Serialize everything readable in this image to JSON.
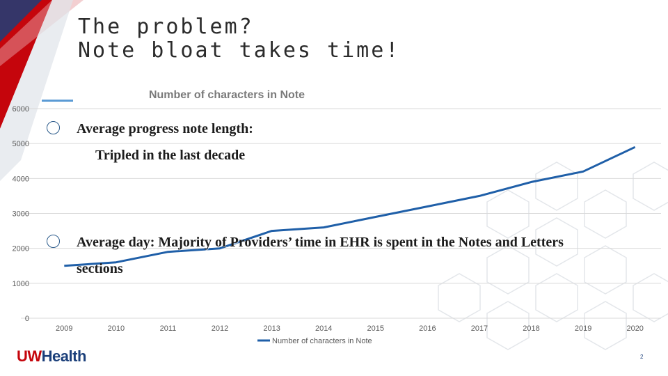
{
  "slide": {
    "title_line1": "The problem?",
    "title_line2": "Note bloat takes time!",
    "bullets": [
      {
        "line1": "Average progress note length:",
        "line2": "Tripled in the last decade"
      },
      {
        "line1": "Average day: Majority of Providers’ time in EHR is spent in the Notes and Letters",
        "line2": "sections"
      }
    ],
    "logo": {
      "part1": "UW",
      "part2": "Health"
    },
    "page_number": "2"
  },
  "colors": {
    "line": "#1f5fa8",
    "accent_red": "#c5050c",
    "accent_navy": "#1b3f7a",
    "rule": "#5b9bd5"
  },
  "chart_data": {
    "type": "line",
    "title": "Number of characters in Note",
    "categories": [
      "2009",
      "2010",
      "2011",
      "2012",
      "2013",
      "2014",
      "2015",
      "2016",
      "2017",
      "2018",
      "2019",
      "2020"
    ],
    "series": [
      {
        "name": "Number of characters in Note",
        "values": [
          1500,
          1600,
          1900,
          2000,
          2500,
          2600,
          2900,
          3200,
          3500,
          3900,
          4200,
          4900
        ]
      }
    ],
    "yticks": [
      "0",
      "1000",
      "2000",
      "3000",
      "4000",
      "5000",
      "6000"
    ],
    "ylim": [
      0,
      6000
    ],
    "grid": true,
    "legend_position": "bottom"
  }
}
